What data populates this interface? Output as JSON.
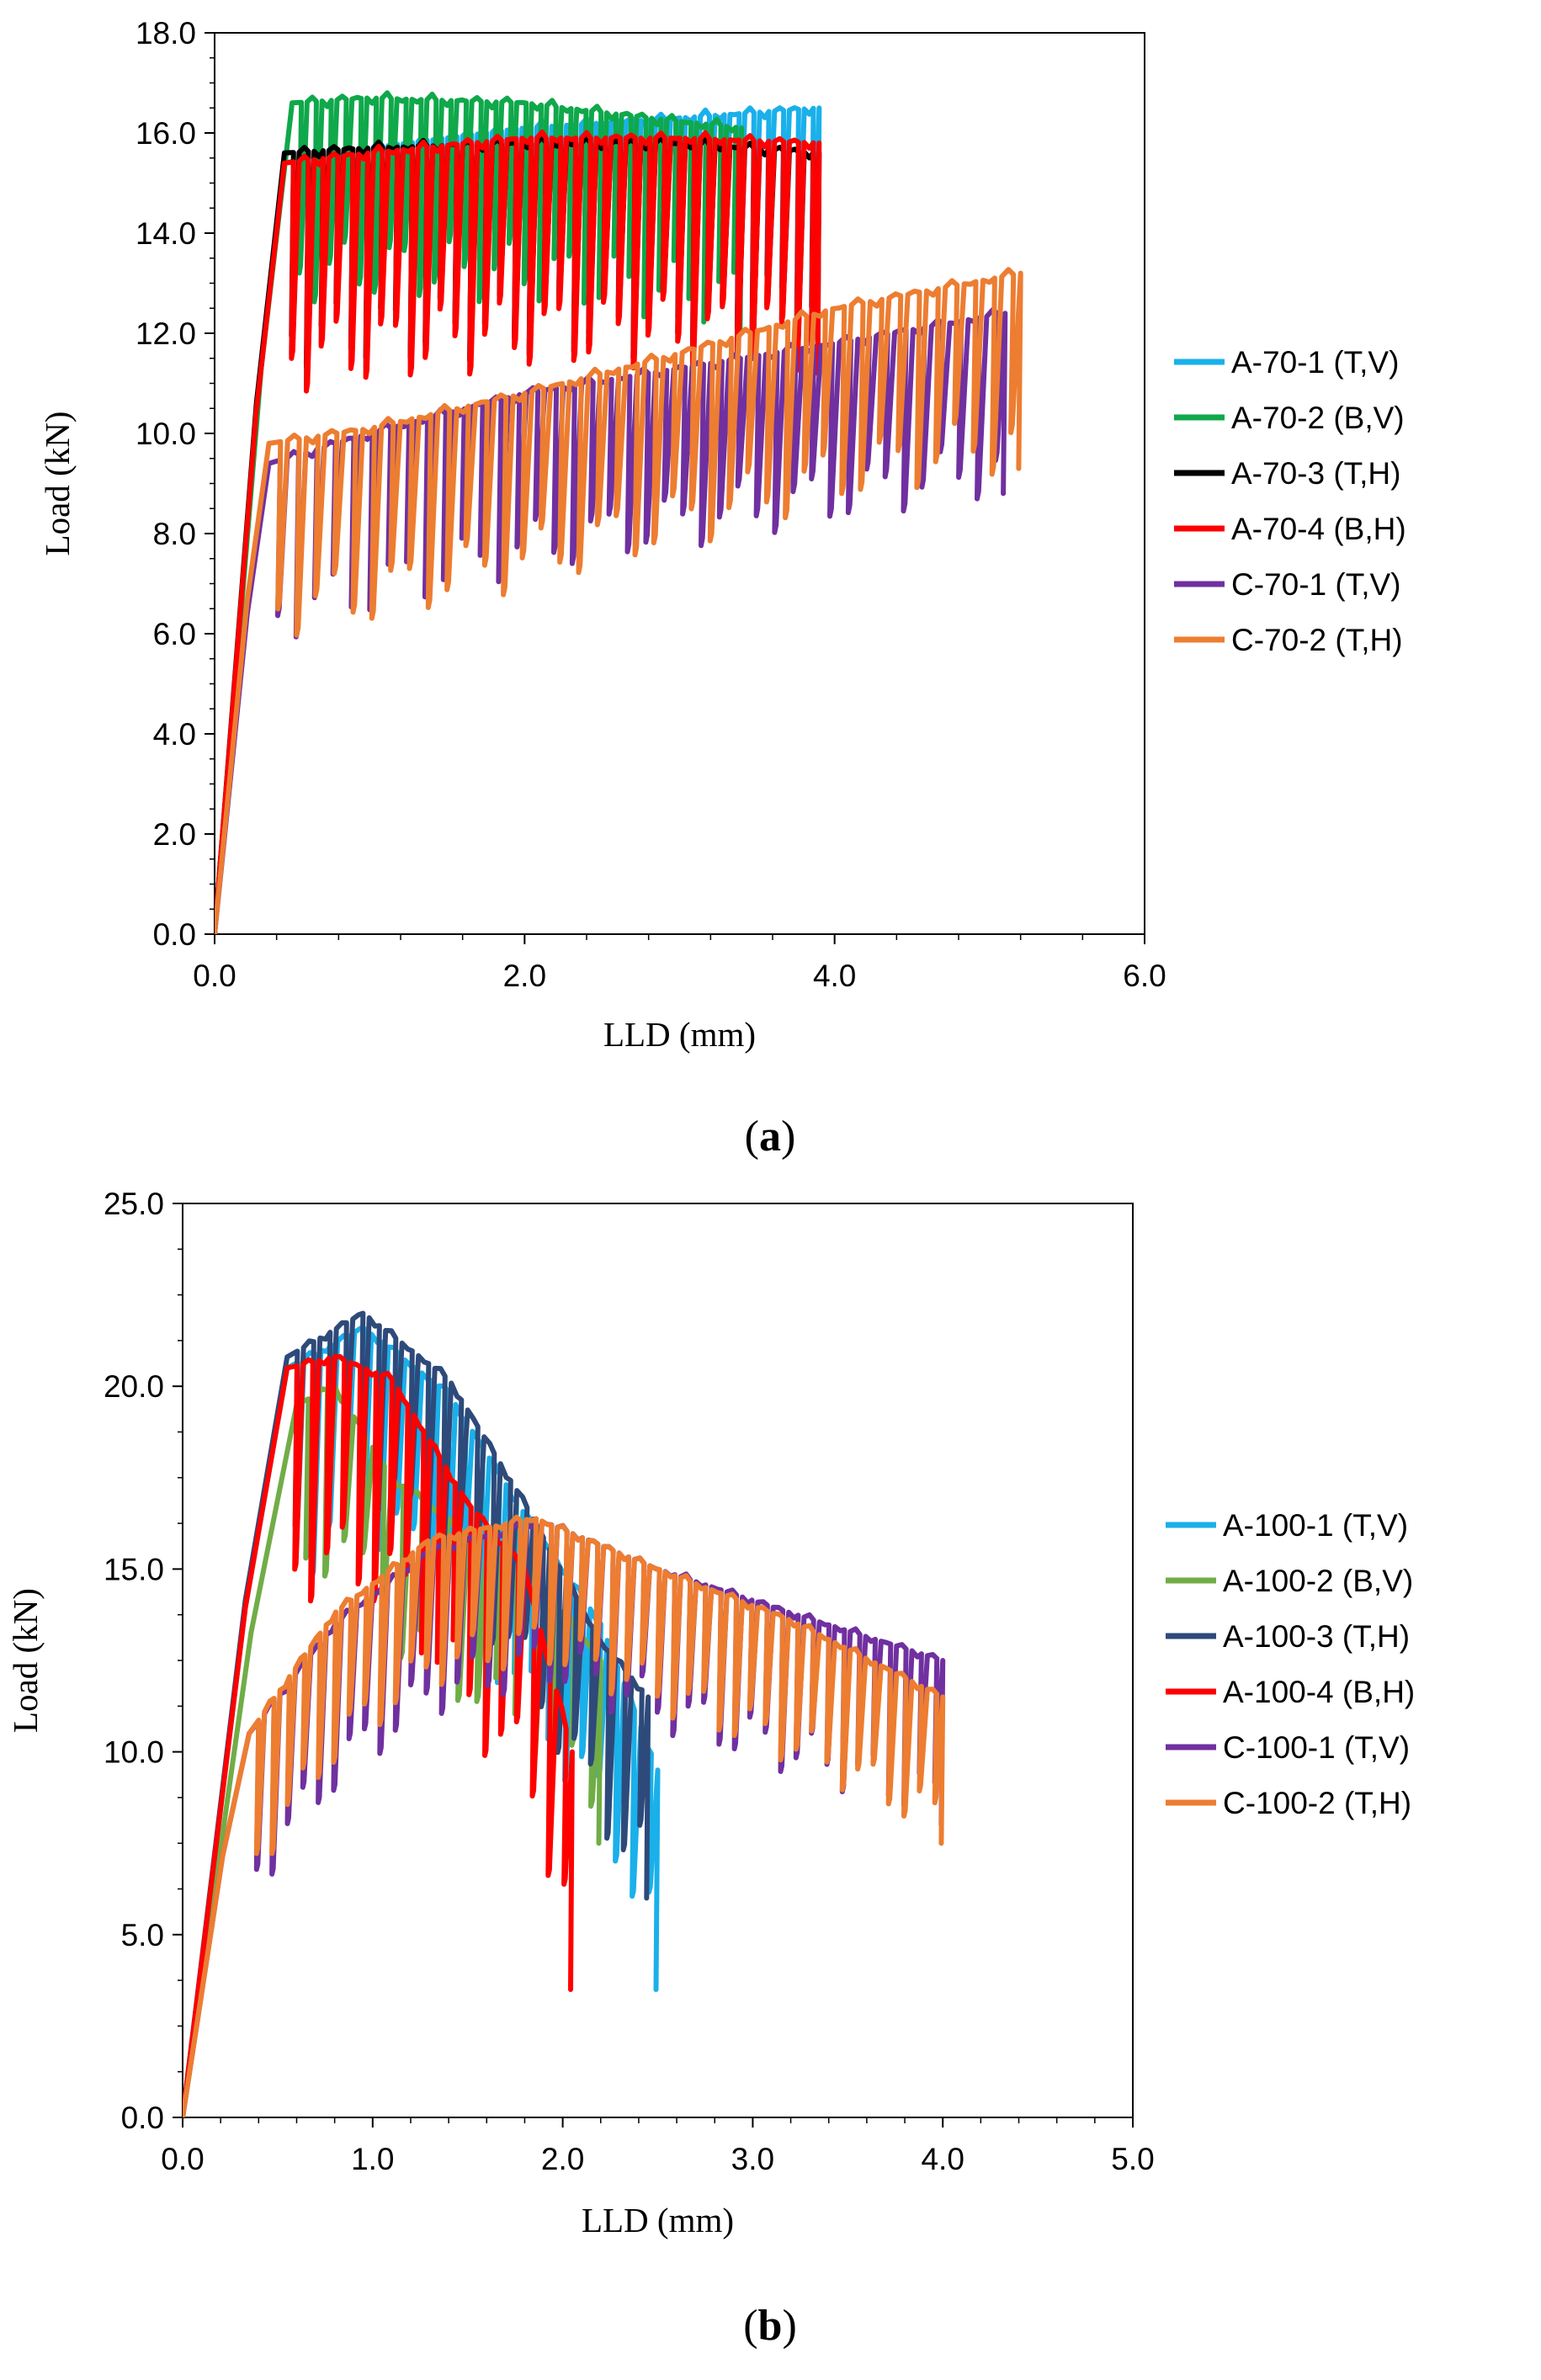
{
  "chart_data": [
    {
      "type": "line",
      "panel_label": "a",
      "xlabel": "LLD (mm)",
      "ylabel": "Load (kN)",
      "xlim": [
        0,
        6
      ],
      "ylim": [
        0,
        18
      ],
      "xticks": [
        0,
        2,
        4,
        6
      ],
      "yticks": [
        0,
        2,
        4,
        6,
        8,
        10,
        12,
        14,
        16,
        18
      ],
      "xtick_labels": [
        "0.0",
        "2.0",
        "4.0",
        "6.0"
      ],
      "ytick_labels": [
        "0.0",
        "2.0",
        "4.0",
        "6.0",
        "8.0",
        "10.0",
        "12.0",
        "14.0",
        "16.0",
        "18.0"
      ],
      "grid": false,
      "legend_position": "right",
      "series": [
        {
          "name": "A-70-1 (T,V)",
          "color": "#1ab0ea",
          "rise": [
            0.45,
            15.4
          ],
          "env": [
            [
              0.45,
              15.4
            ],
            [
              1.0,
              15.7
            ],
            [
              2.0,
              16.1
            ],
            [
              3.0,
              16.3
            ],
            [
              3.9,
              16.5
            ]
          ],
          "dip": 4.5,
          "cycles": 36
        },
        {
          "name": "A-70-2 (B,V)",
          "color": "#0fa84a",
          "rise": [
            0.5,
            16.6
          ],
          "env": [
            [
              0.5,
              16.6
            ],
            [
              1.0,
              16.7
            ],
            [
              2.0,
              16.6
            ],
            [
              2.8,
              16.3
            ],
            [
              3.4,
              16.1
            ]
          ],
          "dip": 4.0,
          "cycles": 30
        },
        {
          "name": "A-70-3 (T,H)",
          "color": "#000000",
          "rise": [
            0.45,
            15.6
          ],
          "env": [
            [
              0.45,
              15.6
            ],
            [
              1.0,
              15.7
            ],
            [
              2.0,
              15.8
            ],
            [
              3.0,
              15.8
            ],
            [
              3.9,
              15.6
            ]
          ],
          "dip": 4.3,
          "cycles": 36
        },
        {
          "name": "A-70-4 (B,H)",
          "color": "#ff0000",
          "rise": [
            0.45,
            15.4
          ],
          "env": [
            [
              0.45,
              15.4
            ],
            [
              1.0,
              15.6
            ],
            [
              2.0,
              15.9
            ],
            [
              3.0,
              15.9
            ],
            [
              3.9,
              15.8
            ]
          ],
          "dip": 4.6,
          "cycles": 36
        },
        {
          "name": "C-70-1 (T,V)",
          "color": "#7030a0",
          "rise": [
            0.35,
            9.4
          ],
          "env": [
            [
              0.35,
              9.4
            ],
            [
              1.0,
              10.0
            ],
            [
              2.0,
              10.8
            ],
            [
              3.0,
              11.3
            ],
            [
              4.0,
              11.8
            ],
            [
              5.1,
              12.4
            ]
          ],
          "dip": 3.6,
          "cycles": 40
        },
        {
          "name": "C-70-2 (T,H)",
          "color": "#ed7d31",
          "rise": [
            0.35,
            9.8
          ],
          "env": [
            [
              0.35,
              9.8
            ],
            [
              1.0,
              10.1
            ],
            [
              2.0,
              10.8
            ],
            [
              3.0,
              11.6
            ],
            [
              4.0,
              12.5
            ],
            [
              5.2,
              13.2
            ]
          ],
          "dip": 3.9,
          "cycles": 40
        }
      ]
    },
    {
      "type": "line",
      "panel_label": "b",
      "xlabel": "LLD (mm)",
      "ylabel": "Load (kN)",
      "xlim": [
        0,
        5
      ],
      "ylim": [
        0,
        25
      ],
      "xticks": [
        0,
        1,
        2,
        3,
        4,
        5
      ],
      "yticks": [
        0,
        5,
        10,
        15,
        20,
        25
      ],
      "xtick_labels": [
        "0.0",
        "1.0",
        "2.0",
        "3.0",
        "4.0",
        "5.0"
      ],
      "ytick_labels": [
        "0.0",
        "5.0",
        "10.0",
        "15.0",
        "20.0",
        "25.0"
      ],
      "grid": false,
      "legend_position": "right",
      "series": [
        {
          "name": "A-100-1 (T,V)",
          "color": "#1ab0ea",
          "rise": [
            0.55,
            20.5
          ],
          "env": [
            [
              0.55,
              20.5
            ],
            [
              0.95,
              21.6
            ],
            [
              1.4,
              19.8
            ],
            [
              1.8,
              16.5
            ],
            [
              2.2,
              13.5
            ],
            [
              2.5,
              9.5
            ]
          ],
          "dip": 6.0,
          "cycles": 22
        },
        {
          "name": "A-100-2 (B,V)",
          "color": "#70ad47",
          "rise": [
            0.6,
            19.5
          ],
          "env": [
            [
              0.6,
              19.5
            ],
            [
              0.8,
              20.0
            ],
            [
              1.1,
              17.5
            ],
            [
              1.5,
              16.0
            ],
            [
              1.9,
              14.5
            ],
            [
              2.2,
              12.5
            ]
          ],
          "dip": 5.0,
          "cycles": 16
        },
        {
          "name": "A-100-3 (T,H)",
          "color": "#2e4a7a",
          "rise": [
            0.55,
            20.8
          ],
          "env": [
            [
              0.55,
              20.8
            ],
            [
              0.95,
              22.0
            ],
            [
              1.4,
              20.2
            ],
            [
              1.8,
              16.8
            ],
            [
              2.2,
              13.0
            ],
            [
              2.45,
              11.5
            ]
          ],
          "dip": 5.5,
          "cycles": 22
        },
        {
          "name": "A-100-4 (B,H)",
          "color": "#ff0000",
          "rise": [
            0.55,
            20.5
          ],
          "env": [
            [
              0.55,
              20.5
            ],
            [
              0.8,
              20.8
            ],
            [
              1.1,
              20.2
            ],
            [
              1.5,
              16.8
            ],
            [
              1.8,
              15.0
            ],
            [
              2.05,
              10.0
            ]
          ],
          "dip": 6.5,
          "cycles": 18
        },
        {
          "name": "C-100-1 (T,V)",
          "color": "#7030a0",
          "rise": [
            0.35,
            10.5
          ],
          "env": [
            [
              0.35,
              10.5
            ],
            [
              0.8,
              13.5
            ],
            [
              1.3,
              15.5
            ],
            [
              1.9,
              16.3
            ],
            [
              2.5,
              15.0
            ],
            [
              3.2,
              13.8
            ],
            [
              4.0,
              12.5
            ]
          ],
          "dip": 4.5,
          "cycles": 45
        },
        {
          "name": "C-100-2 (T,H)",
          "color": "#ed7d31",
          "rise": [
            0.35,
            10.5
          ],
          "env": [
            [
              0.35,
              10.5
            ],
            [
              0.8,
              13.8
            ],
            [
              1.3,
              15.8
            ],
            [
              1.85,
              16.4
            ],
            [
              2.5,
              15.0
            ],
            [
              3.2,
              13.6
            ],
            [
              4.0,
              11.5
            ]
          ],
          "dip": 4.0,
          "cycles": 45
        }
      ]
    }
  ]
}
